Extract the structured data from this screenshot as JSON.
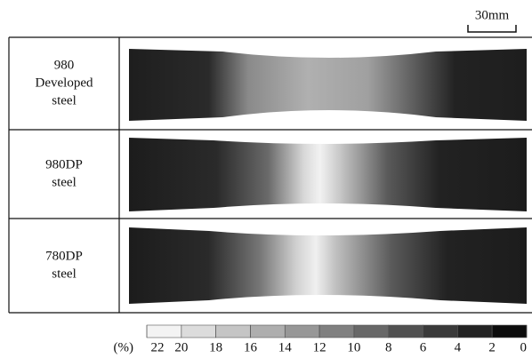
{
  "scale_bar": "30mm",
  "table": {
    "rows": [
      {
        "label": [
          "980",
          "Developed",
          "steel"
        ]
      },
      {
        "label": [
          "980DP",
          "steel"
        ]
      },
      {
        "label": [
          "780DP",
          "steel"
        ]
      }
    ]
  },
  "colorbar": {
    "unit": "(%)",
    "ticks": [
      22,
      20,
      18,
      16,
      14,
      12,
      10,
      8,
      6,
      4,
      2,
      0
    ]
  }
}
